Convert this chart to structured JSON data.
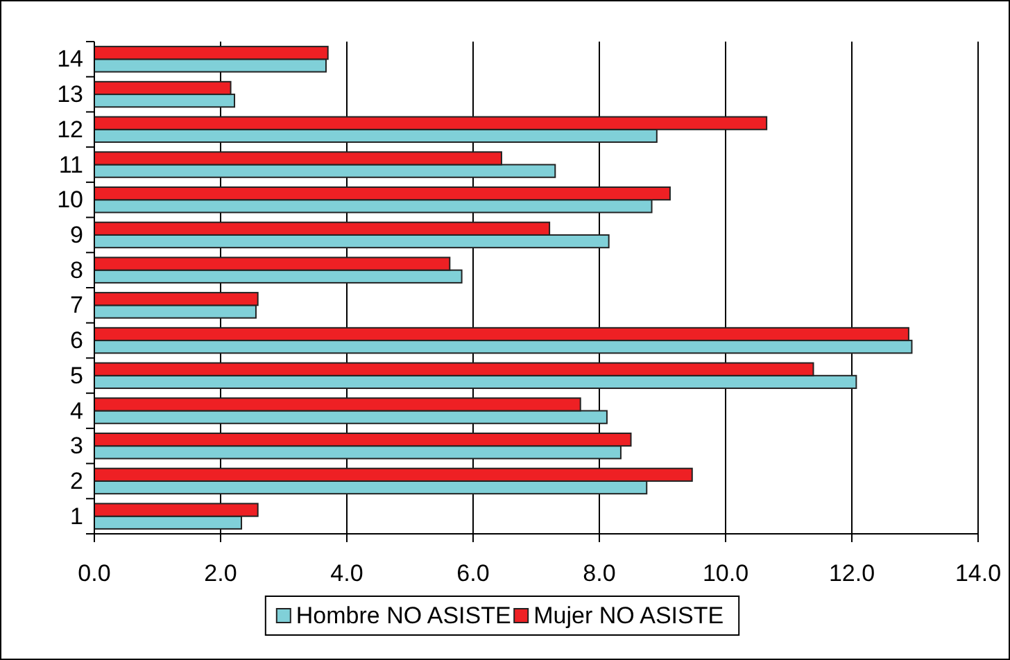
{
  "chart_data": {
    "type": "bar",
    "orientation": "horizontal",
    "categories": [
      "14",
      "13",
      "12",
      "11",
      "10",
      "9",
      "8",
      "7",
      "6",
      "5",
      "4",
      "3",
      "2",
      "1"
    ],
    "series": [
      {
        "name": "Hombre NO ASISTE",
        "color": "#80d0d8",
        "values": [
          3.67,
          2.22,
          8.91,
          7.3,
          8.83,
          8.15,
          5.82,
          2.56,
          12.95,
          12.07,
          8.12,
          8.34,
          8.75,
          2.33
        ]
      },
      {
        "name": "Mujer NO ASISTE",
        "color": "#ee2024",
        "values": [
          3.7,
          2.16,
          10.65,
          6.45,
          9.12,
          7.21,
          5.63,
          2.59,
          12.9,
          11.39,
          7.7,
          8.5,
          9.47,
          2.59
        ]
      }
    ],
    "xlim": [
      0,
      14
    ],
    "xticks": [
      {
        "value": 0,
        "label": "0.0"
      },
      {
        "value": 2,
        "label": "2.0"
      },
      {
        "value": 4,
        "label": "4.0"
      },
      {
        "value": 6,
        "label": "6.0"
      },
      {
        "value": 8,
        "label": "8.0"
      },
      {
        "value": 10,
        "label": "10.0"
      },
      {
        "value": 12,
        "label": "12.0"
      },
      {
        "value": 14,
        "label": "14.0"
      }
    ],
    "grid": "x",
    "legend": "bottom"
  }
}
